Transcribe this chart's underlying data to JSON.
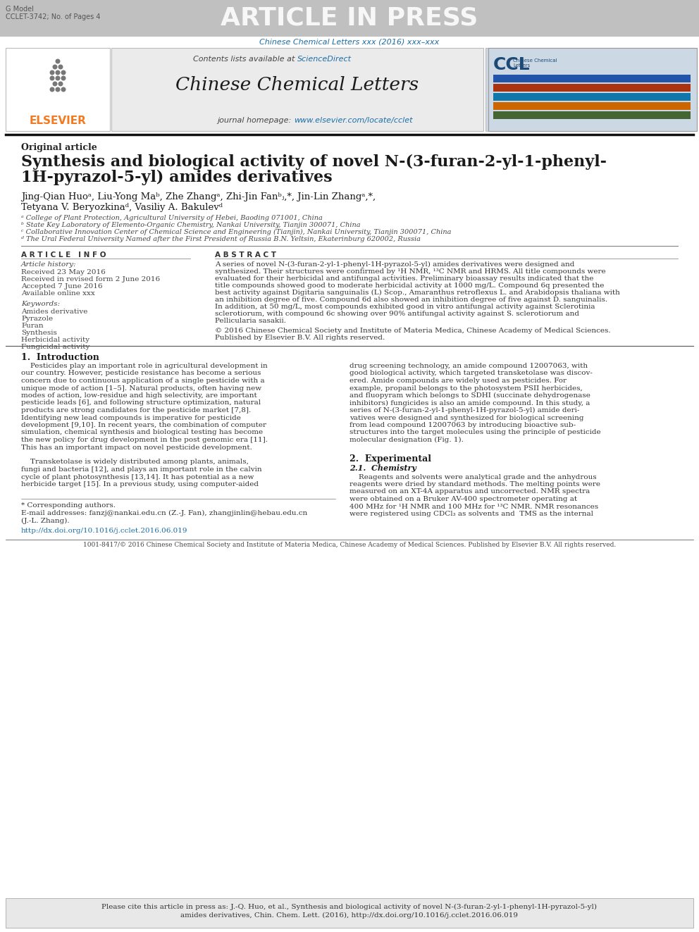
{
  "page_bg": "#ffffff",
  "header_bg": "#c0c0c0",
  "header_text": "ARTICLE IN PRESS",
  "header_left_line1": "G Model",
  "header_left_line2": "CCLET-3742; No. of Pages 4",
  "journal_ref_line": "Chinese Chemical Letters xxx (2016) xxx–xxx",
  "journal_ref_color": "#1a6ea8",
  "sciencedirect_text": "ScienceDirect",
  "sciencedirect_color": "#1a6ea8",
  "journal_title": "Chinese Chemical Letters",
  "journal_homepage_url": "www.elsevier.com/locate/cclet",
  "journal_homepage_color": "#1a6ea8",
  "elsevier_color": "#f47920",
  "header_box_bg": "#ebebeb",
  "dark_text": "#1a1a1a",
  "original_article": "Original article",
  "paper_title_line1": "Synthesis and biological activity of novel N-(3-furan-2-yl-1-phenyl-",
  "paper_title_line2": "1H-pyrazol-5-yl) amides derivatives",
  "author_line1": "Jing-Qian Huoᵃ, Liu-Yong Maᵇ, Zhe Zhangᵃ, Zhi-Jin Fanᵇⱼ,*, Jin-Lin Zhangᵃ,*,",
  "author_line2": "Tetyana V. Beryozkinaᵈ, Vasiliy A. Bakulevᵈ",
  "affil_a": "ᵃ College of Plant Protection, Agricultural University of Hebei, Baoding 071001, China",
  "affil_b": "ᵇ State Key Laboratory of Elemento-Organic Chemistry, Nankai University, Tianjin 300071, China",
  "affil_c": "ᶜ Collaborative Innovation Center of Chemical Science and Engineering (Tianjin), Nankai University, Tianjin 300071, China",
  "affil_d": "ᵈ The Ural Federal University Named after the First President of Russia B.N. Yeltsin, Ekaterinburg 620002, Russia",
  "article_info_title": "A R T I C L E   I N F O",
  "abstract_title": "A B S T R A C T",
  "article_history_label": "Article history:",
  "received1": "Received 23 May 2016",
  "received2": "Received in revised form 2 June 2016",
  "accepted": "Accepted 7 June 2016",
  "available": "Available online xxx",
  "keywords_label": "Keywords:",
  "keywords": [
    "Amides derivative",
    "Pyrazole",
    "Furan",
    "Synthesis",
    "Herbicidal activity",
    "Fungicidal activity"
  ],
  "abstract_lines": [
    "A series of novel N-(3-furan-2-yl-1-phenyl-1H-pyrazol-5-yl) amides derivatives were designed and",
    "synthesized. Their structures were confirmed by ¹H NMR, ¹³C NMR and HRMS. All title compounds were",
    "evaluated for their herbicidal and antifungal activities. Preliminary bioassay results indicated that the",
    "title compounds showed good to moderate herbicidal activity at 1000 mg/L. Compound 6q presented the",
    "best activity against Digitaria sanguinalis (L) Scop., Amaranthus retroflexus L. and Arabidopsis thaliana with",
    "an inhibition degree of five. Compound 6d also showed an inhibition degree of five against D. sanguinalis.",
    "In addition, at 50 mg/L, most compounds exhibited good in vitro antifungal activity against Sclerotinia",
    "sclerotiorum, with compound 6c showing over 90% antifungal activity against S. sclerotiorum and",
    "Pellicularia sasakii."
  ],
  "abstract_copyright1": "© 2016 Chinese Chemical Society and Institute of Materia Medica, Chinese Academy of Medical Sciences.",
  "abstract_copyright2": "Published by Elsevier B.V. All rights reserved.",
  "intro_title": "1.  Introduction",
  "intro_col1_lines": [
    "    Pesticides play an important role in agricultural development in",
    "our country. However, pesticide resistance has become a serious",
    "concern due to continuous application of a single pesticide with a",
    "unique mode of action [1–5]. Natural products, often having new",
    "modes of action, low-residue and high selectivity, are important",
    "pesticide leads [6], and following structure optimization, natural",
    "products are strong candidates for the pesticide market [7,8].",
    "Identifying new lead compounds is imperative for pesticide",
    "development [9,10]. In recent years, the combination of computer",
    "simulation, chemical synthesis and biological testing has become",
    "the new policy for drug development in the post genomic era [11].",
    "This has an important impact on novel pesticide development.",
    "",
    "    Transketolase is widely distributed among plants, animals,",
    "fungi and bacteria [12], and plays an important role in the calvin",
    "cycle of plant photosynthesis [13,14]. It has potential as a new",
    "herbicide target [15]. In a previous study, using computer-aided"
  ],
  "intro_col2_lines": [
    "drug screening technology, an amide compound 12007063, with",
    "good biological activity, which targeted transketolase was discov-",
    "ered. Amide compounds are widely used as pesticides. For",
    "example, propanil belongs to the photosystem PSII herbicides,",
    "and fluopyram which belongs to SDHI (succinate dehydrogenase",
    "inhibitors) fungicides is also an amide compound. In this study, a",
    "series of N-(3-furan-2-yl-1-phenyl-1H-pyrazol-5-yl) amide deri-",
    "vatives were designed and synthesized for biological screening",
    "from lead compound 12007063 by introducing bioactive sub-",
    "structures into the target molecules using the principle of pesticide",
    "molecular designation (Fig. 1)."
  ],
  "exp_title": "2.  Experimental",
  "exp_sub_title": "2.1.  Chemistry",
  "exp_lines": [
    "    Reagents and solvents were analytical grade and the anhydrous",
    "reagents were dried by standard methods. The melting points were",
    "measured on an XT-4A apparatus and uncorrected. NMR spectra",
    "were obtained on a Bruker AV-400 spectrometer operating at",
    "400 MHz for ¹H NMR and 100 MHz for ¹³C NMR. NMR resonances",
    "were registered using CDCl₃ as solvents and  TMS as the internal"
  ],
  "footnote_star": "* Corresponding authors.",
  "footnote_email1": "E-mail addresses: fanzj@nankai.edu.cn (Z.-J. Fan), zhangjinlin@hebau.edu.cn",
  "footnote_email2": "(J.-L. Zhang).",
  "footnote_doi": "http://dx.doi.org/10.1016/j.cclet.2016.06.019",
  "footnote_doi_color": "#1a6ea8",
  "bottom_text": "1001-8417/© 2016 Chinese Chemical Society and Institute of Materia Medica, Chinese Academy of Medical Sciences. Published by Elsevier B.V. All rights reserved.",
  "cite_box_bg": "#e8e8e8",
  "cite_line1": "Please cite this article in press as: J.-Q. Huo, et al., Synthesis and biological activity of novel N-(3-furan-2-yl-1-phenyl-1H-pyrazol-5-yl)",
  "cite_line2": "amides derivatives, Chin. Chem. Lett. (2016), http://dx.doi.org/10.1016/j.cclet.2016.06.019"
}
